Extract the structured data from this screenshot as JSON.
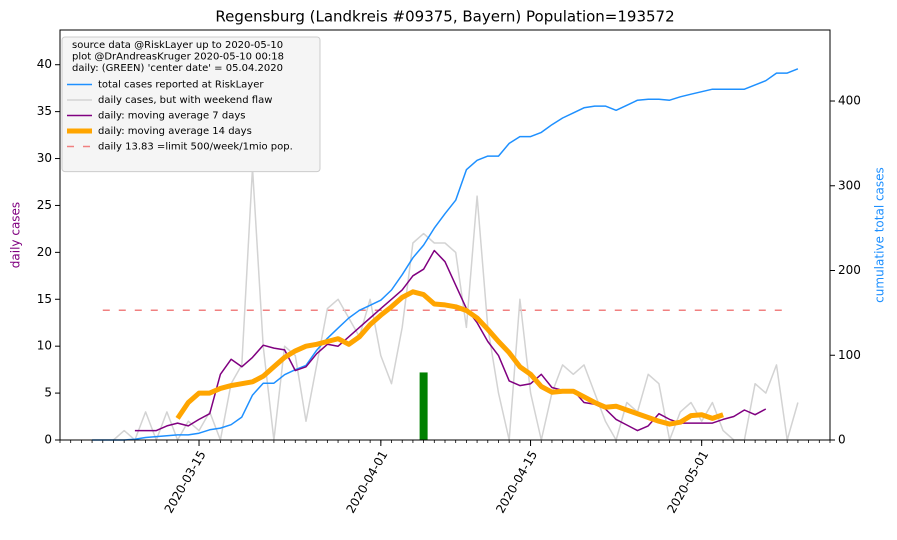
{
  "chart_data": {
    "type": "line",
    "title": "Regensburg (Landkreis #09375, Bayern) Population=193572",
    "ylabel": "daily cases",
    "ylabel_color": "#800080",
    "y2label": "cumulative total cases",
    "y2label_color": "#1e90ff",
    "x": [
      "2020-03-05",
      "2020-03-06",
      "2020-03-07",
      "2020-03-08",
      "2020-03-09",
      "2020-03-10",
      "2020-03-11",
      "2020-03-12",
      "2020-03-13",
      "2020-03-14",
      "2020-03-15",
      "2020-03-16",
      "2020-03-17",
      "2020-03-18",
      "2020-03-19",
      "2020-03-20",
      "2020-03-21",
      "2020-03-22",
      "2020-03-23",
      "2020-03-24",
      "2020-03-25",
      "2020-03-26",
      "2020-03-27",
      "2020-03-28",
      "2020-03-29",
      "2020-03-30",
      "2020-03-31",
      "2020-04-01",
      "2020-04-02",
      "2020-04-03",
      "2020-04-04",
      "2020-04-05",
      "2020-04-06",
      "2020-04-07",
      "2020-04-08",
      "2020-04-09",
      "2020-04-10",
      "2020-04-11",
      "2020-04-12",
      "2020-04-13",
      "2020-04-14",
      "2020-04-15",
      "2020-04-16",
      "2020-04-17",
      "2020-04-18",
      "2020-04-19",
      "2020-04-20",
      "2020-04-21",
      "2020-04-22",
      "2020-04-23",
      "2020-04-24",
      "2020-04-25",
      "2020-04-26",
      "2020-04-27",
      "2020-04-28",
      "2020-04-29",
      "2020-04-30",
      "2020-05-01",
      "2020-05-02",
      "2020-05-03",
      "2020-05-04",
      "2020-05-05",
      "2020-05-06",
      "2020-05-07",
      "2020-05-08",
      "2020-05-09",
      "2020-05-10"
    ],
    "series": [
      {
        "name": "total cases reported at RiskLayer",
        "color": "#1e90ff",
        "width": 1.5,
        "axis": "y2",
        "values": [
          0,
          0,
          0,
          0,
          1,
          3,
          4,
          5,
          6,
          6,
          8,
          12,
          14,
          18,
          27,
          53,
          67,
          67,
          77,
          83,
          88,
          106,
          120,
          132,
          144,
          153,
          159,
          165,
          177,
          195,
          215,
          230,
          250,
          267,
          283,
          319,
          330,
          335,
          335,
          350,
          358,
          358,
          363,
          372,
          380,
          386,
          392,
          394,
          394,
          389,
          395,
          401,
          402,
          402,
          401,
          405,
          408,
          411,
          414,
          414,
          414,
          414,
          419,
          424,
          433,
          433,
          438
        ]
      },
      {
        "name": "daily cases, but with weekend flaw",
        "color": "#d3d3d3",
        "width": 1.5,
        "values": [
          null,
          null,
          0,
          1,
          0,
          3,
          0,
          3,
          0,
          2,
          1,
          3,
          0,
          6,
          8,
          29,
          10,
          0,
          10,
          9,
          2,
          8,
          14,
          15,
          13,
          11,
          15,
          9,
          6,
          12,
          21,
          22,
          21,
          21,
          20,
          12,
          26,
          12,
          5,
          0,
          15,
          5,
          0,
          5,
          8,
          7,
          8,
          5,
          2,
          0,
          4,
          3,
          7,
          6,
          0,
          3,
          4,
          2,
          4,
          1,
          0,
          0,
          6,
          5,
          8,
          0,
          4
        ]
      },
      {
        "name": "daily: moving average 7 days",
        "color": "#800080",
        "width": 1.5,
        "values": [
          null,
          null,
          null,
          null,
          1,
          1,
          1,
          1.5,
          1.8,
          1.5,
          2.2,
          2.8,
          7,
          8.6,
          7.8,
          8.8,
          10.1,
          9.8,
          9.6,
          7.4,
          7.8,
          9.2,
          10.2,
          10,
          11,
          12,
          13,
          14,
          15,
          16,
          17.5,
          18.2,
          20.2,
          19,
          16.5,
          14,
          12.5,
          10.5,
          9,
          6.3,
          5.8,
          6,
          7,
          5.6,
          5.3,
          5.3,
          4,
          3.8,
          3.3,
          2.2,
          1.6,
          1,
          1.5,
          2.8,
          2.2,
          1.8,
          1.8,
          1.8,
          1.8,
          2.2,
          2.5,
          3.2,
          2.7,
          3.3,
          null,
          null,
          null
        ]
      },
      {
        "name": "daily: moving average 14 days",
        "color": "#ffa500",
        "width": 5,
        "values": [
          null,
          null,
          null,
          null,
          null,
          null,
          null,
          null,
          2.3,
          4,
          5,
          5,
          5.5,
          5.8,
          6,
          6.2,
          6.8,
          7.8,
          8.8,
          9.5,
          10,
          10.2,
          10.5,
          10.8,
          10.2,
          11,
          12.3,
          13.3,
          14.2,
          15.2,
          15.8,
          15.5,
          14.5,
          14.4,
          14.2,
          13.8,
          13,
          11.8,
          10.5,
          9.3,
          7.8,
          7,
          5.7,
          5.1,
          5.2,
          5.2,
          4.6,
          4,
          3.5,
          3.6,
          3.2,
          2.8,
          2.4,
          2,
          1.7,
          1.9,
          2.6,
          2.7,
          2.3,
          2.7,
          null,
          null,
          null,
          null,
          null,
          null,
          null
        ]
      }
    ],
    "hline": {
      "name": "daily 13.83 =limit 500/week/1mio pop.",
      "value": 13.83,
      "color": "#f08080",
      "x_start": "2020-03-06",
      "x_end": "2020-05-09"
    },
    "marker": {
      "x": "2020-04-05",
      "value": 7.2,
      "color": "#008000"
    },
    "legend_header": [
      "source data @RiskLayer up to 2020-05-10",
      "plot @DrAndreasKruger 2020-05-10 00:18",
      "daily: (GREEN) 'center date' = 05.04.2020"
    ],
    "legend": "upper left",
    "xlim": [
      "2020-03-02",
      "2020-05-13"
    ],
    "xticks": [
      "2020-03-15",
      "2020-04-01",
      "2020-04-15",
      "2020-05-01"
    ],
    "ylim": [
      0,
      43.7
    ],
    "yticks": [
      0,
      5,
      10,
      15,
      20,
      25,
      30,
      35,
      40
    ],
    "y2lim": [
      0,
      483.8
    ],
    "y2ticks": [
      0,
      100,
      200,
      300,
      400
    ]
  }
}
